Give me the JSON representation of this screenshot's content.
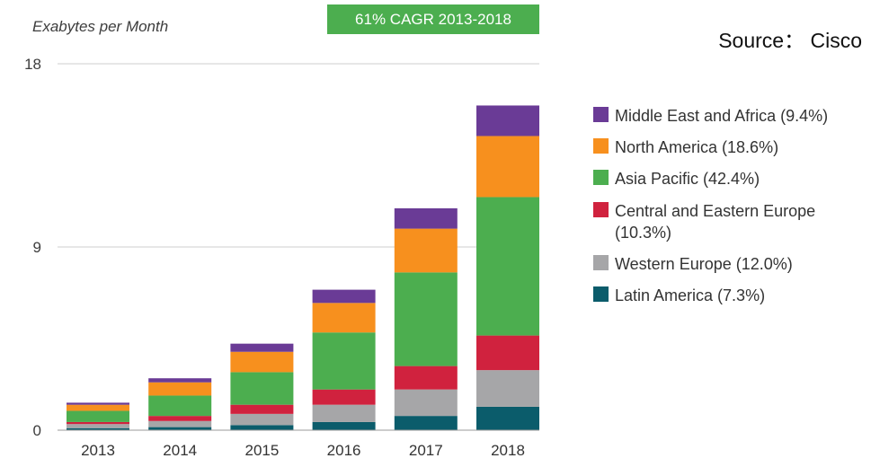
{
  "header": {
    "ylabel": "Exabytes per Month",
    "cagr_badge": "61% CAGR 2013-2018",
    "source": "Source： Cisco"
  },
  "colors": {
    "Middle East and Africa": "#6a3b96",
    "North America": "#f7901e",
    "Asia Pacific": "#4cae4f",
    "Central and Eastern Europe": "#d0223e",
    "Western Europe": "#a6a6a8",
    "Latin America": "#0b5c6b",
    "grid": "#cfcfcf",
    "axis": "#9a9a9a"
  },
  "chart_data": {
    "type": "bar",
    "stacked": true,
    "categories": [
      "2013",
      "2014",
      "2015",
      "2016",
      "2017",
      "2018"
    ],
    "ylim": [
      0,
      18
    ],
    "yticks": [
      0,
      9,
      18
    ],
    "grid": true,
    "legend_position": "right",
    "series": [
      {
        "name": "Latin America (7.3%)",
        "key": "Latin America",
        "values": [
          0.1,
          0.15,
          0.25,
          0.4,
          0.7,
          1.15
        ]
      },
      {
        "name": "Western Europe (12.0%)",
        "key": "Western Europe",
        "values": [
          0.2,
          0.3,
          0.55,
          0.85,
          1.3,
          1.8
        ]
      },
      {
        "name": "Central and Eastern Europe (10.3%)",
        "key": "Central and Eastern Europe",
        "values": [
          0.1,
          0.25,
          0.45,
          0.75,
          1.15,
          1.7
        ]
      },
      {
        "name": "Asia Pacific (42.4%)",
        "key": "Asia Pacific",
        "values": [
          0.55,
          1.0,
          1.6,
          2.8,
          4.6,
          6.8
        ]
      },
      {
        "name": "North America (18.6%)",
        "key": "North America",
        "values": [
          0.3,
          0.65,
          1.0,
          1.45,
          2.15,
          3.0
        ]
      },
      {
        "name": "Middle East and Africa (9.4%)",
        "key": "Middle East and Africa",
        "values": [
          0.1,
          0.2,
          0.4,
          0.65,
          1.0,
          1.5
        ]
      }
    ]
  }
}
